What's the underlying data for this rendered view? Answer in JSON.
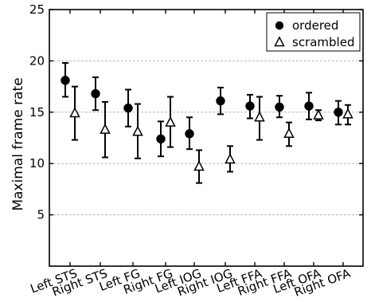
{
  "chart_data": {
    "type": "scatter",
    "title": "",
    "xlabel": "",
    "ylabel": "Maximal frame rate",
    "ylim": [
      0,
      25
    ],
    "yticks": [
      5,
      10,
      15,
      20,
      25
    ],
    "grid": true,
    "legend_position": "top-right",
    "categories": [
      "Left STS",
      "Right STS",
      "Left FG",
      "Right FG",
      "Left IOG",
      "Right IOG",
      "Left FFA",
      "Right FFA",
      "Left OFA",
      "Right OFA"
    ],
    "series": [
      {
        "name": "ordered",
        "marker": "filled-circle",
        "color": "#000000",
        "values": [
          18.1,
          16.8,
          15.4,
          12.4,
          12.9,
          16.1,
          15.6,
          15.5,
          15.6,
          15.0
        ],
        "err_low": [
          16.5,
          15.2,
          13.6,
          10.7,
          11.4,
          14.8,
          14.4,
          14.5,
          14.3,
          13.8
        ],
        "err_high": [
          19.8,
          18.4,
          17.2,
          14.1,
          14.5,
          17.4,
          16.7,
          16.6,
          16.9,
          16.1
        ]
      },
      {
        "name": "scrambled",
        "marker": "open-triangle",
        "color": "#000000",
        "values": [
          14.9,
          13.3,
          13.1,
          14.0,
          9.7,
          10.4,
          14.5,
          12.9,
          14.7,
          14.8
        ],
        "err_low": [
          12.3,
          10.6,
          10.5,
          11.6,
          8.1,
          9.2,
          12.3,
          11.7,
          14.2,
          13.8
        ],
        "err_high": [
          17.5,
          16.0,
          15.8,
          16.5,
          11.3,
          11.7,
          16.5,
          14.0,
          15.2,
          15.7
        ]
      }
    ]
  }
}
